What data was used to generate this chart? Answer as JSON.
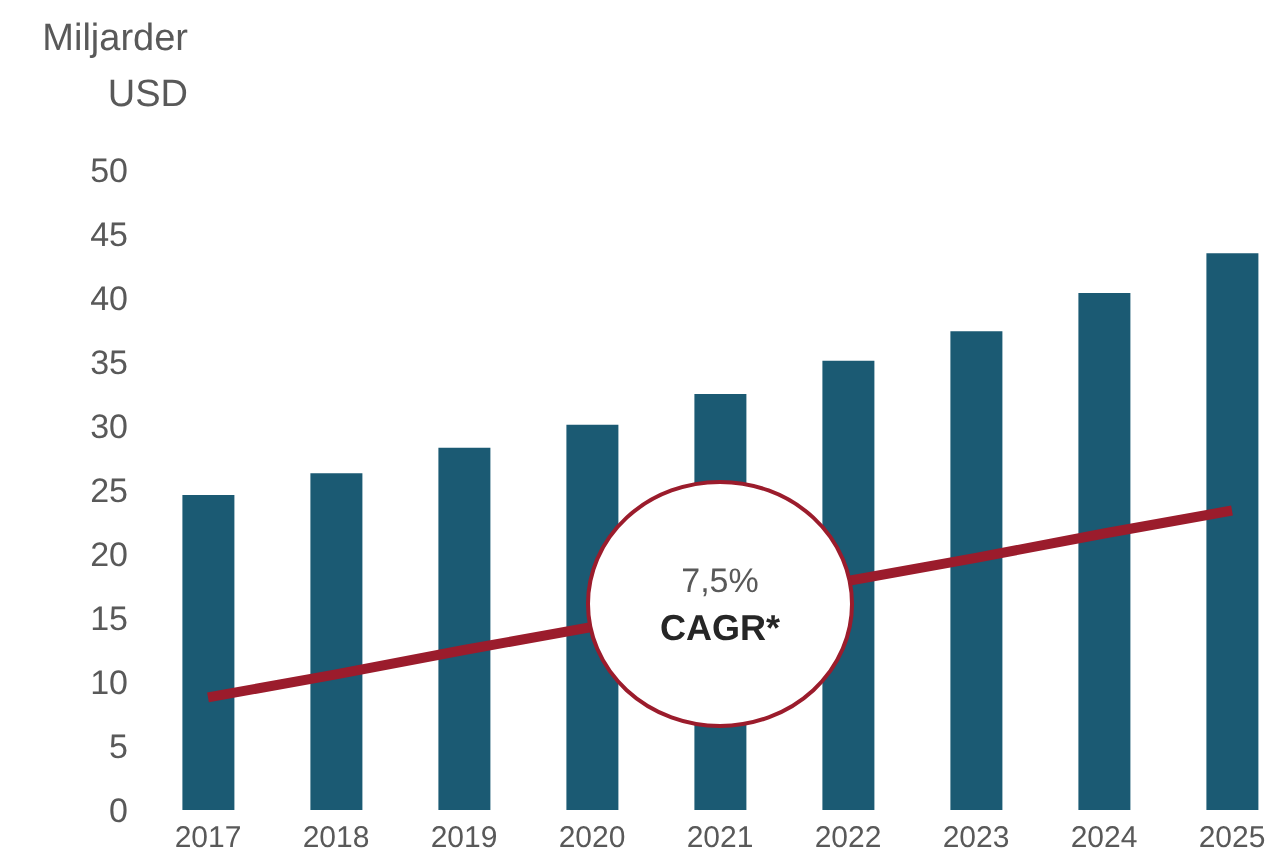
{
  "chart_data": {
    "type": "bar",
    "ylabel": "Miljarder USD",
    "categories": [
      "2017",
      "2018",
      "2019",
      "2020",
      "2021",
      "2022",
      "2023",
      "2024",
      "2025"
    ],
    "series": [
      {
        "color": "#1b5a73",
        "values": [
          24.6,
          26.3,
          28.3,
          30.1,
          32.5,
          35.1,
          37.4,
          40.4,
          43.5
        ]
      },
      {
        "type": "line",
        "color": "#9b1c2c",
        "values": [
          8.8,
          10.6,
          12.5,
          null,
          null,
          null,
          19.7,
          21.6,
          23.4
        ],
        "marker": "none"
      }
    ],
    "ylim": [
      0,
      50
    ],
    "yticks": [
      0,
      5,
      10,
      15,
      20,
      25,
      30,
      35,
      40,
      45,
      50
    ],
    "grid": false,
    "legend": false,
    "annotations": [
      "7,5%",
      "CAGR*"
    ]
  }
}
